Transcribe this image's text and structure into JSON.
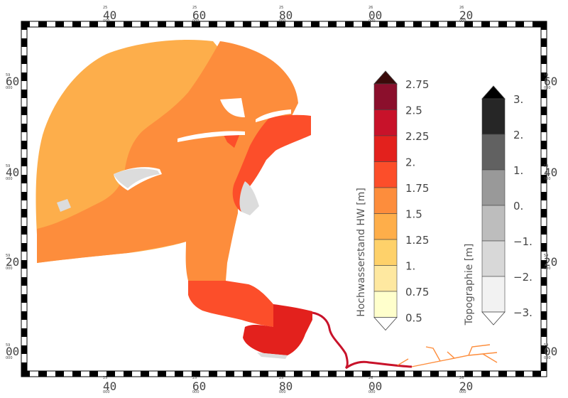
{
  "map": {
    "frame": {
      "x_labels": [
        {
          "sup": "25",
          "sub": "000",
          "value": "40"
        },
        {
          "sup": "25",
          "sub": "000",
          "value": "60"
        },
        {
          "sup": "25",
          "sub": "000",
          "value": "80"
        },
        {
          "sup": "26",
          "sub": "000",
          "value": "00"
        },
        {
          "sup": "26",
          "sub": "000",
          "value": "20"
        }
      ],
      "y_labels": [
        {
          "sup": "59",
          "sub": "000",
          "value": "60"
        },
        {
          "sup": "59",
          "sub": "000",
          "value": "40"
        },
        {
          "sup": "59",
          "sub": "000",
          "value": "20"
        },
        {
          "sup": "59",
          "sub": "000",
          "value": "00"
        }
      ]
    },
    "colorbar_hw": {
      "title": "Hochwasserstand HW  [m]",
      "labels": [
        "2.75",
        "2.5",
        "2.25",
        "2.",
        "1.75",
        "1.5",
        "1.25",
        "1.",
        "0.75",
        "0.5"
      ],
      "colors": [
        "#8b0f2c",
        "#c8122a",
        "#e3211d",
        "#fc4e2a",
        "#fd8d3c",
        "#feae4a",
        "#fed16a",
        "#fee8a0",
        "#ffffcc"
      ],
      "top_arrow_color": "#3a0a0a",
      "bottom_arrow_color": "#ffffff"
    },
    "colorbar_topo": {
      "title": "Topographie  [m]",
      "labels": [
        "3.",
        "2.",
        "1.",
        "0.",
        "−1.",
        "−2.",
        "−3."
      ],
      "colors": [
        "#262626",
        "#616161",
        "#999999",
        "#bdbdbd",
        "#d8d8d8",
        "#f2f2f2"
      ],
      "top_arrow_color": "#000000",
      "bottom_arrow_color": "#ffffff"
    },
    "water_colors": {
      "outer": "#fdae4b",
      "middle": "#fd8d3c",
      "inner": "#fc4e2a",
      "deep": "#e3211d",
      "river": "#c8122a",
      "tributary": "#fd8d3c",
      "tidal_flat": "#dcdcdc"
    }
  }
}
